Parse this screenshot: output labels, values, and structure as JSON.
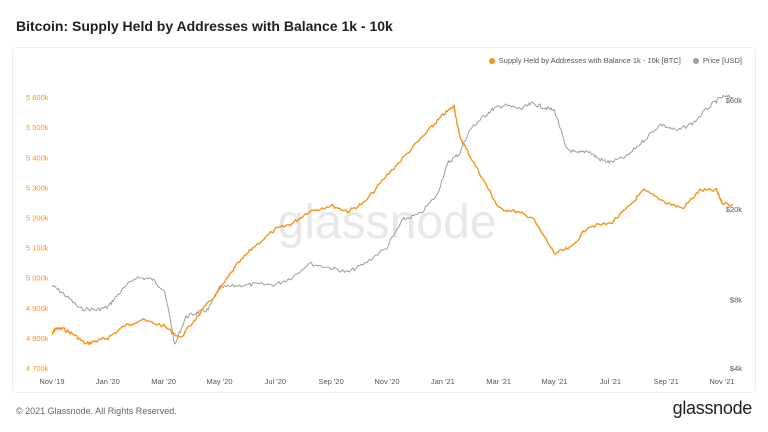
{
  "title": "Bitcoin: Supply Held by Addresses with Balance 1k - 10k",
  "footer": {
    "copyright": "© 2021 Glassnode. All Rights Reserved.",
    "brand": "glassnode"
  },
  "chart_data": {
    "type": "line",
    "title": "Bitcoin: Supply Held by Addresses with Balance 1k - 10k",
    "watermark": "glassnode",
    "x_ticks": [
      "Nov '19",
      "Jan '20",
      "Mar '20",
      "May '20",
      "Jul '20",
      "Sep '20",
      "Nov '20",
      "Jan '21",
      "Mar '21",
      "May '21",
      "Jul '21",
      "Sep '21",
      "Nov '21"
    ],
    "y_left": {
      "label": "Supply Held by Addresses with Balance 1k - 10k [BTC]",
      "ylim": [
        4700000,
        5640000
      ],
      "ticks": [
        4700000,
        4800000,
        4900000,
        5000000,
        5100000,
        5200000,
        5300000,
        5400000,
        5500000,
        5600000
      ],
      "tick_labels": [
        "4 700k",
        "4 800k",
        "4 900k",
        "5 000k",
        "5 100k",
        "5 200k",
        "5 300k",
        "5 400k",
        "5 500k",
        "5 600k"
      ],
      "color": "#f7931a"
    },
    "y_right": {
      "label": "Price [USD]",
      "scale": "log",
      "ylim": [
        4000,
        70000
      ],
      "ticks": [
        4000,
        8000,
        20000,
        60000
      ],
      "tick_labels": [
        "$4k",
        "$8k",
        "$20k",
        "$60k"
      ],
      "color": "#808080"
    },
    "legend": [
      "Supply Held by Addresses with Balance 1k - 10k [BTC]",
      "Price [USD]"
    ],
    "legend_colors": [
      "#f7931a",
      "#9e9e9e"
    ],
    "series": [
      {
        "name": "Supply Held by Addresses with Balance 1k - 10k [BTC]",
        "axis": "left",
        "color": "#f7931a",
        "x": [
          0,
          0.05,
          0.2,
          0.4,
          0.6,
          0.8,
          1.0,
          1.3,
          1.6,
          2.0,
          2.3,
          2.6,
          3.0,
          3.3,
          3.6,
          4.0,
          4.3,
          4.6,
          5.0,
          5.3,
          5.6,
          6.0,
          6.4,
          6.8,
          7.0,
          7.2,
          7.3,
          7.5,
          7.8,
          8.0,
          8.3,
          8.6,
          9.0,
          9.3,
          9.6,
          10.0,
          10.3,
          10.6,
          11.0,
          11.3,
          11.6,
          11.9,
          12.0,
          12.2
        ],
        "values": [
          4810000,
          4830000,
          4830000,
          4810000,
          4780000,
          4790000,
          4800000,
          4840000,
          4860000,
          4840000,
          4800000,
          4870000,
          4960000,
          5040000,
          5100000,
          5160000,
          5180000,
          5220000,
          5240000,
          5220000,
          5250000,
          5340000,
          5420000,
          5500000,
          5540000,
          5570000,
          5470000,
          5400000,
          5300000,
          5230000,
          5220000,
          5200000,
          5080000,
          5100000,
          5170000,
          5180000,
          5230000,
          5290000,
          5250000,
          5230000,
          5290000,
          5290000,
          5250000,
          5240000
        ]
      },
      {
        "name": "Price [USD]",
        "axis": "right",
        "color": "#9e9e9e",
        "x": [
          0,
          0.2,
          0.5,
          0.8,
          1.0,
          1.2,
          1.5,
          1.8,
          2.0,
          2.2,
          2.4,
          2.6,
          2.8,
          3.0,
          3.3,
          3.6,
          4.0,
          4.3,
          4.6,
          5.0,
          5.3,
          5.6,
          6.0,
          6.3,
          6.6,
          6.9,
          7.1,
          7.3,
          7.5,
          7.7,
          7.9,
          8.1,
          8.4,
          8.6,
          8.8,
          9.0,
          9.2,
          9.4,
          9.6,
          9.8,
          10.0,
          10.3,
          10.6,
          10.9,
          11.2,
          11.5,
          11.8,
          12.0,
          12.2
        ],
        "values": [
          9200,
          8500,
          7300,
          7200,
          7400,
          8500,
          10000,
          9800,
          8800,
          5000,
          6700,
          7000,
          7200,
          9000,
          9200,
          9300,
          9300,
          10000,
          11500,
          11000,
          10500,
          11500,
          13500,
          18000,
          19000,
          23000,
          32000,
          35000,
          45000,
          50000,
          55000,
          57000,
          55000,
          58000,
          56000,
          54000,
          37000,
          35000,
          36000,
          33000,
          32000,
          34000,
          40000,
          47000,
          44000,
          48000,
          57000,
          62000,
          62000
        ]
      }
    ]
  }
}
